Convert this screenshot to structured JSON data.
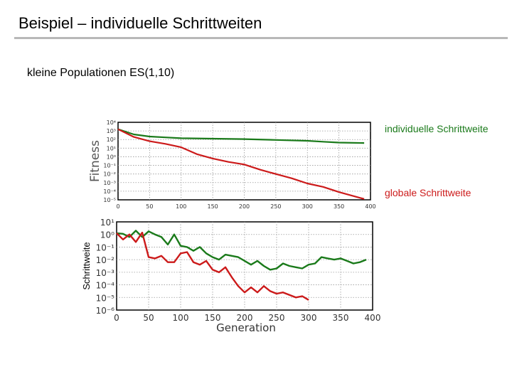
{
  "slide": {
    "title": "Beispiel – individuelle Schrittweiten",
    "subtitle": "kleine Populationen ES(1,10)"
  },
  "legend": {
    "green": "individuelle Schrittweite",
    "red": "globale Schrittweite"
  },
  "colors": {
    "green": "#1a7a1a",
    "red": "#cc1a1a"
  },
  "chart_data": [
    {
      "type": "line",
      "title": "",
      "xlabel": "",
      "ylabel": "Fitness",
      "y_scale": "log",
      "xlim": [
        0,
        400
      ],
      "ylim_exp": [
        -5,
        4
      ],
      "grid": true,
      "x_ticks": [
        0,
        50,
        100,
        150,
        200,
        250,
        300,
        350,
        400
      ],
      "series": [
        {
          "color": "#1a7a1a",
          "x": [
            0,
            25,
            50,
            75,
            100,
            150,
            200,
            250,
            300,
            325,
            350,
            390
          ],
          "y_exp": [
            3.2,
            2.6,
            2.35,
            2.25,
            2.15,
            2.1,
            2.05,
            1.95,
            1.85,
            1.75,
            1.65,
            1.6
          ]
        },
        {
          "color": "#cc1a1a",
          "x": [
            0,
            25,
            50,
            75,
            100,
            125,
            150,
            175,
            200,
            225,
            250,
            275,
            300,
            325,
            350,
            375,
            390
          ],
          "y_exp": [
            3.2,
            2.3,
            1.8,
            1.5,
            1.1,
            0.3,
            -0.2,
            -0.6,
            -0.9,
            -1.5,
            -2.0,
            -2.5,
            -3.1,
            -3.5,
            -4.1,
            -4.6,
            -4.9
          ]
        }
      ]
    },
    {
      "type": "line",
      "title": "",
      "xlabel": "Generation",
      "ylabel": "Schrittweite",
      "y_scale": "log",
      "xlim": [
        0,
        400
      ],
      "ylim_exp": [
        -6,
        1
      ],
      "grid": true,
      "x_ticks": [
        0,
        50,
        100,
        150,
        200,
        250,
        300,
        350,
        400
      ],
      "series": [
        {
          "color": "#1a7a1a",
          "x": [
            0,
            10,
            20,
            30,
            40,
            50,
            60,
            70,
            80,
            90,
            100,
            110,
            120,
            130,
            140,
            150,
            160,
            170,
            180,
            190,
            200,
            210,
            220,
            230,
            240,
            250,
            260,
            270,
            280,
            290,
            300,
            310,
            320,
            330,
            340,
            350,
            360,
            370,
            380,
            390
          ],
          "y_exp": [
            0.1,
            0.05,
            -0.2,
            0.3,
            -0.2,
            0.25,
            0.0,
            -0.2,
            -0.8,
            0.0,
            -0.9,
            -1.0,
            -1.3,
            -1.0,
            -1.5,
            -1.8,
            -2.0,
            -1.6,
            -1.7,
            -1.8,
            -2.1,
            -2.4,
            -2.1,
            -2.5,
            -2.8,
            -2.7,
            -2.3,
            -2.5,
            -2.6,
            -2.7,
            -2.4,
            -2.3,
            -1.8,
            -1.9,
            -2.0,
            -1.9,
            -2.1,
            -2.3,
            -2.2,
            -2.0
          ]
        },
        {
          "color": "#cc1a1a",
          "x": [
            0,
            10,
            20,
            30,
            40,
            50,
            60,
            70,
            80,
            90,
            100,
            110,
            120,
            130,
            140,
            150,
            160,
            170,
            180,
            190,
            200,
            210,
            220,
            230,
            240,
            250,
            260,
            270,
            280,
            290,
            300
          ],
          "y_exp": [
            0.1,
            -0.4,
            0.0,
            -0.6,
            0.15,
            -1.8,
            -1.9,
            -1.7,
            -2.2,
            -2.2,
            -1.5,
            -1.4,
            -2.2,
            -2.4,
            -2.1,
            -2.8,
            -3.0,
            -2.6,
            -3.4,
            -4.1,
            -4.6,
            -4.2,
            -4.6,
            -4.1,
            -4.5,
            -4.7,
            -4.6,
            -4.8,
            -5.0,
            -4.9,
            -5.2
          ]
        }
      ]
    }
  ]
}
